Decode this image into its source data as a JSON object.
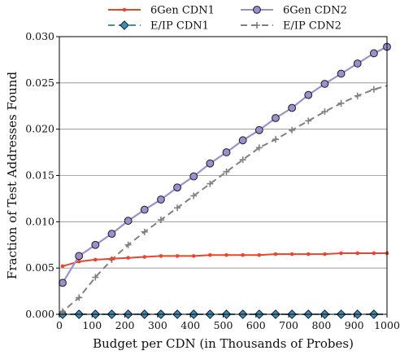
{
  "chart_data": {
    "type": "line",
    "xlabel": "Budget per CDN (in Thousands of Probes)",
    "ylabel": "Fraction of Test Addresses Found",
    "xlim": [
      0,
      1000
    ],
    "ylim": [
      0,
      0.03
    ],
    "xticks": [
      "0",
      "100",
      "200",
      "300",
      "400",
      "500",
      "600",
      "700",
      "800",
      "900",
      "1000"
    ],
    "yticks": [
      "0.000",
      "0.005",
      "0.010",
      "0.015",
      "0.020",
      "0.025",
      "0.030"
    ],
    "grid": "horizontal",
    "legend_position": "top",
    "series": [
      {
        "name": "6Gen CDN1",
        "color": "#e8452c",
        "marker": "dot",
        "dashed": false,
        "x": [
          10,
          60,
          110,
          160,
          210,
          260,
          310,
          360,
          410,
          460,
          510,
          560,
          610,
          660,
          710,
          760,
          810,
          860,
          910,
          960,
          1000
        ],
        "y": [
          0.0052,
          0.0057,
          0.0059,
          0.006,
          0.0061,
          0.0062,
          0.0063,
          0.0063,
          0.0063,
          0.0064,
          0.0064,
          0.0064,
          0.0064,
          0.0065,
          0.0065,
          0.0065,
          0.0065,
          0.0066,
          0.0066,
          0.0066,
          0.0066
        ]
      },
      {
        "name": "6Gen CDN2",
        "color": "#9b8fd0",
        "marker": "circle",
        "dashed": false,
        "x": [
          10,
          60,
          110,
          160,
          210,
          260,
          310,
          360,
          410,
          460,
          510,
          560,
          610,
          660,
          710,
          760,
          810,
          860,
          910,
          960,
          1000
        ],
        "y": [
          0.0034,
          0.0063,
          0.0075,
          0.0087,
          0.0101,
          0.0113,
          0.0124,
          0.0137,
          0.0149,
          0.0163,
          0.0175,
          0.0188,
          0.0199,
          0.0212,
          0.0223,
          0.0237,
          0.0249,
          0.026,
          0.0271,
          0.0282,
          0.0289
        ]
      },
      {
        "name": "E/IP CDN1",
        "color": "#3b8fc0",
        "marker": "diamond",
        "dashed": true,
        "x": [
          0,
          10,
          60,
          110,
          160,
          210,
          260,
          310,
          360,
          410,
          460,
          510,
          560,
          610,
          660,
          710,
          760,
          810,
          860,
          910,
          960,
          1000
        ],
        "y": [
          0,
          0,
          0,
          0,
          0,
          0,
          0,
          0,
          0,
          0,
          0,
          0,
          0,
          0,
          0,
          0,
          0,
          0,
          0,
          0,
          0,
          0
        ]
      },
      {
        "name": "E/IP CDN2",
        "color": "#808080",
        "marker": "plus",
        "dashed": true,
        "x": [
          0,
          10,
          60,
          110,
          160,
          210,
          260,
          310,
          360,
          410,
          460,
          510,
          560,
          610,
          660,
          710,
          760,
          810,
          860,
          910,
          960,
          1000
        ],
        "y": [
          0,
          0.0003,
          0.0018,
          0.004,
          0.0059,
          0.0075,
          0.0089,
          0.0102,
          0.0115,
          0.0128,
          0.0141,
          0.0154,
          0.0167,
          0.018,
          0.0189,
          0.0199,
          0.0209,
          0.0219,
          0.0228,
          0.0236,
          0.0243,
          0.0247
        ]
      }
    ]
  }
}
